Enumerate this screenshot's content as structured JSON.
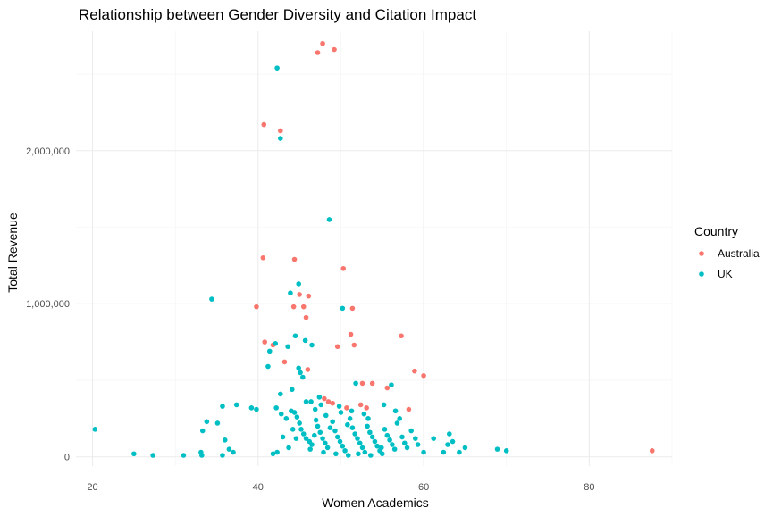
{
  "chart_data": {
    "type": "scatter",
    "title": "Relationship between Gender Diversity and Citation Impact",
    "xlabel": "Women Academics",
    "ylabel": "Total Revenue",
    "xlim": [
      18,
      90
    ],
    "ylim": [
      -60000,
      2780000
    ],
    "x_ticks": [
      20,
      40,
      60,
      80
    ],
    "x_tick_labels": [
      "20",
      "40",
      "60",
      "80"
    ],
    "y_ticks": [
      0,
      1000000,
      2000000
    ],
    "y_tick_labels": [
      "0",
      "1,000,000",
      "2,000,000"
    ],
    "grid": true,
    "legend": {
      "title": "Country",
      "position": "right"
    },
    "series": [
      {
        "name": "Australia",
        "color": "#f8766d",
        "points": [
          [
            47.2,
            2640000
          ],
          [
            47.8,
            2700000
          ],
          [
            49.2,
            2660000
          ],
          [
            40.7,
            2170000
          ],
          [
            42.7,
            2130000
          ],
          [
            40.6,
            1300000
          ],
          [
            44.4,
            1290000
          ],
          [
            50.3,
            1230000
          ],
          [
            39.8,
            980000
          ],
          [
            44.3,
            980000
          ],
          [
            45.0,
            1060000
          ],
          [
            45.5,
            980000
          ],
          [
            46.1,
            1050000
          ],
          [
            45.8,
            910000
          ],
          [
            51.4,
            970000
          ],
          [
            40.8,
            750000
          ],
          [
            41.8,
            730000
          ],
          [
            49.6,
            720000
          ],
          [
            51.2,
            800000
          ],
          [
            51.6,
            730000
          ],
          [
            57.3,
            790000
          ],
          [
            43.2,
            620000
          ],
          [
            46.0,
            570000
          ],
          [
            58.9,
            560000
          ],
          [
            60.0,
            530000
          ],
          [
            52.6,
            480000
          ],
          [
            53.8,
            480000
          ],
          [
            55.6,
            450000
          ],
          [
            48.0,
            380000
          ],
          [
            48.5,
            360000
          ],
          [
            49.0,
            350000
          ],
          [
            50.7,
            320000
          ],
          [
            52.4,
            340000
          ],
          [
            53.1,
            320000
          ],
          [
            58.2,
            310000
          ],
          [
            87.6,
            40000
          ]
        ]
      },
      {
        "name": "UK",
        "color": "#00bfc4",
        "points": [
          [
            42.3,
            2540000
          ],
          [
            42.7,
            2080000
          ],
          [
            48.6,
            1550000
          ],
          [
            34.4,
            1030000
          ],
          [
            43.9,
            1070000
          ],
          [
            44.9,
            1130000
          ],
          [
            50.2,
            970000
          ],
          [
            44.5,
            790000
          ],
          [
            42.1,
            740000
          ],
          [
            43.6,
            720000
          ],
          [
            46.5,
            730000
          ],
          [
            45.7,
            760000
          ],
          [
            41.4,
            690000
          ],
          [
            41.2,
            590000
          ],
          [
            44.9,
            580000
          ],
          [
            45.1,
            550000
          ],
          [
            45.4,
            520000
          ],
          [
            45.8,
            360000
          ],
          [
            44.1,
            440000
          ],
          [
            42.7,
            410000
          ],
          [
            46.4,
            360000
          ],
          [
            47.4,
            390000
          ],
          [
            51.8,
            480000
          ],
          [
            56.1,
            470000
          ],
          [
            20.3,
            180000
          ],
          [
            25.0,
            20000
          ],
          [
            27.3,
            10000
          ],
          [
            31.0,
            10000
          ],
          [
            33.1,
            30000
          ],
          [
            33.2,
            10000
          ],
          [
            33.8,
            230000
          ],
          [
            33.3,
            170000
          ],
          [
            35.1,
            220000
          ],
          [
            35.7,
            330000
          ],
          [
            36.5,
            50000
          ],
          [
            36.0,
            110000
          ],
          [
            35.7,
            10000
          ],
          [
            37.4,
            340000
          ],
          [
            37.0,
            30000
          ],
          [
            39.2,
            320000
          ],
          [
            39.8,
            310000
          ],
          [
            41.8,
            20000
          ],
          [
            42.3,
            30000
          ],
          [
            42.2,
            320000
          ],
          [
            42.8,
            280000
          ],
          [
            43.4,
            250000
          ],
          [
            44.0,
            300000
          ],
          [
            44.4,
            290000
          ],
          [
            44.7,
            260000
          ],
          [
            45.0,
            220000
          ],
          [
            45.2,
            180000
          ],
          [
            45.5,
            150000
          ],
          [
            45.8,
            120000
          ],
          [
            46.2,
            100000
          ],
          [
            46.5,
            80000
          ],
          [
            46.8,
            140000
          ],
          [
            47.0,
            240000
          ],
          [
            47.2,
            200000
          ],
          [
            47.5,
            160000
          ],
          [
            47.8,
            120000
          ],
          [
            48.1,
            90000
          ],
          [
            48.4,
            60000
          ],
          [
            48.7,
            190000
          ],
          [
            49.0,
            230000
          ],
          [
            49.3,
            170000
          ],
          [
            49.6,
            130000
          ],
          [
            49.9,
            100000
          ],
          [
            50.2,
            70000
          ],
          [
            50.5,
            40000
          ],
          [
            50.8,
            210000
          ],
          [
            51.1,
            250000
          ],
          [
            51.4,
            190000
          ],
          [
            51.7,
            150000
          ],
          [
            52.0,
            120000
          ],
          [
            52.3,
            90000
          ],
          [
            52.6,
            60000
          ],
          [
            52.9,
            30000
          ],
          [
            53.2,
            200000
          ],
          [
            53.5,
            160000
          ],
          [
            53.8,
            130000
          ],
          [
            54.1,
            100000
          ],
          [
            54.4,
            70000
          ],
          [
            54.7,
            40000
          ],
          [
            55.0,
            20000
          ],
          [
            55.3,
            180000
          ],
          [
            55.6,
            140000
          ],
          [
            55.9,
            110000
          ],
          [
            56.2,
            80000
          ],
          [
            56.5,
            50000
          ],
          [
            56.8,
            220000
          ],
          [
            57.1,
            250000
          ],
          [
            57.4,
            130000
          ],
          [
            57.7,
            90000
          ],
          [
            58.0,
            60000
          ],
          [
            58.5,
            170000
          ],
          [
            59.0,
            120000
          ],
          [
            59.3,
            80000
          ],
          [
            60.0,
            30000
          ],
          [
            61.2,
            120000
          ],
          [
            62.4,
            30000
          ],
          [
            62.9,
            80000
          ],
          [
            63.1,
            150000
          ],
          [
            63.5,
            100000
          ],
          [
            64.3,
            30000
          ],
          [
            65.0,
            60000
          ],
          [
            68.9,
            50000
          ],
          [
            70.0,
            40000
          ],
          [
            46.3,
            50000
          ],
          [
            47.9,
            30000
          ],
          [
            49.4,
            20000
          ],
          [
            50.9,
            10000
          ],
          [
            52.1,
            20000
          ],
          [
            53.6,
            10000
          ],
          [
            54.9,
            60000
          ],
          [
            43.7,
            60000
          ],
          [
            44.6,
            120000
          ],
          [
            46.9,
            310000
          ],
          [
            48.2,
            270000
          ],
          [
            50.0,
            290000
          ],
          [
            51.3,
            300000
          ],
          [
            52.8,
            280000
          ],
          [
            55.2,
            340000
          ],
          [
            56.6,
            300000
          ],
          [
            53.3,
            250000
          ],
          [
            49.8,
            330000
          ],
          [
            47.6,
            340000
          ],
          [
            44.2,
            180000
          ],
          [
            43.0,
            130000
          ]
        ]
      }
    ]
  }
}
